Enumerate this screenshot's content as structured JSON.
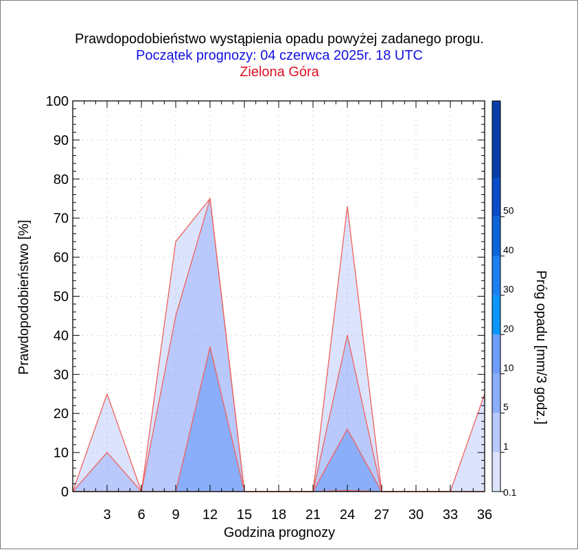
{
  "chart_data": {
    "type": "area",
    "title": "Prawdopodobieństwo wystąpienia opadu powyżej zadanego progu.",
    "subtitle": "Początek prognozy: 04 czerwca 2025r. 18 UTC",
    "location": "Zielona Góra",
    "xlabel": "Godzina prognozy",
    "ylabel": "Prawdopodobieństwo [%]",
    "colorbar_label": "Próg opadu [mm/3 godz.]",
    "xlim": [
      0,
      36
    ],
    "ylim": [
      0,
      100
    ],
    "x_ticks": [
      3,
      6,
      9,
      12,
      15,
      18,
      21,
      24,
      27,
      30,
      33,
      36
    ],
    "y_ticks": [
      0,
      10,
      20,
      30,
      40,
      50,
      60,
      70,
      80,
      90,
      100
    ],
    "grid": true,
    "x": [
      0,
      3,
      6,
      9,
      12,
      15,
      18,
      21,
      24,
      27,
      30,
      33,
      36
    ],
    "series": [
      {
        "threshold": 0.1,
        "color": "#dce3fd",
        "values": [
          0,
          25,
          0,
          64,
          75,
          0,
          0,
          0,
          73,
          0,
          0,
          0,
          25
        ]
      },
      {
        "threshold": 1,
        "color": "#b9c9fb",
        "values": [
          0,
          10,
          0,
          45,
          75,
          0,
          0,
          0,
          40,
          0,
          0,
          0,
          0
        ]
      },
      {
        "threshold": 5,
        "color": "#8aaefa",
        "values": [
          0,
          0,
          0,
          0,
          37,
          0,
          0,
          0,
          16,
          0,
          0,
          0,
          0
        ]
      },
      {
        "threshold": 10,
        "color": "#6e9ef8",
        "values": [
          0,
          0,
          0,
          0,
          0,
          0,
          0,
          0,
          0.3,
          0,
          0,
          0,
          0
        ]
      }
    ],
    "colorbar": {
      "tick_labels": [
        "0.1",
        "1",
        "5",
        "10",
        "20",
        "30",
        "40",
        "50"
      ],
      "bands": [
        {
          "color": "#dce3fd"
        },
        {
          "color": "#b9c9fb"
        },
        {
          "color": "#8aaefa"
        },
        {
          "color": "#6e9ef8"
        },
        {
          "color": "#0b96fb"
        },
        {
          "color": "#1d7ff0"
        },
        {
          "color": "#0c64d8"
        },
        {
          "color": "#0a4cc8"
        },
        {
          "color": "#0a3ea8"
        }
      ]
    },
    "outline_color": "#f0605a"
  }
}
